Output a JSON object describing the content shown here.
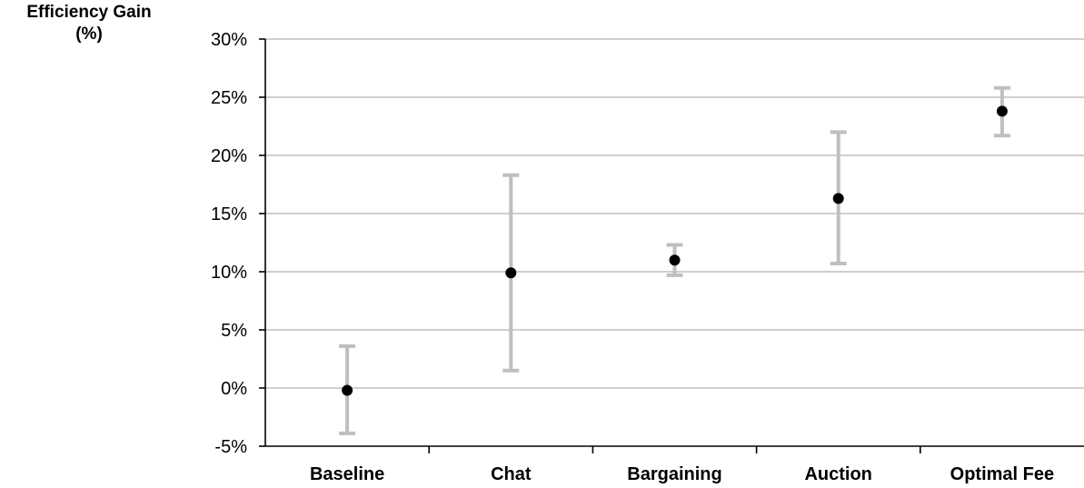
{
  "chart_data": {
    "type": "scatter",
    "title": "",
    "ylabel_line1": "Efficiency Gain",
    "ylabel_line2": "(%)",
    "xlabel": "",
    "categories": [
      "Baseline",
      "Chat",
      "Bargaining",
      "Auction",
      "Optimal Fee"
    ],
    "values": [
      -0.2,
      9.9,
      11.0,
      16.3,
      23.8
    ],
    "error_low": [
      -3.9,
      1.5,
      9.7,
      10.7,
      21.7
    ],
    "error_high": [
      3.6,
      18.3,
      12.3,
      22.0,
      25.8
    ],
    "ylim": [
      -5,
      30
    ],
    "yticks": [
      -5,
      0,
      5,
      10,
      15,
      20,
      25,
      30
    ],
    "ytick_labels": [
      "-5%",
      "0%",
      "5%",
      "10%",
      "15%",
      "20%",
      "25%",
      "30%"
    ],
    "grid": true,
    "colors": {
      "point": "#000000",
      "error_bar": "#bfbfbf",
      "grid": "#bfbfbf",
      "axis": "#000000"
    }
  }
}
